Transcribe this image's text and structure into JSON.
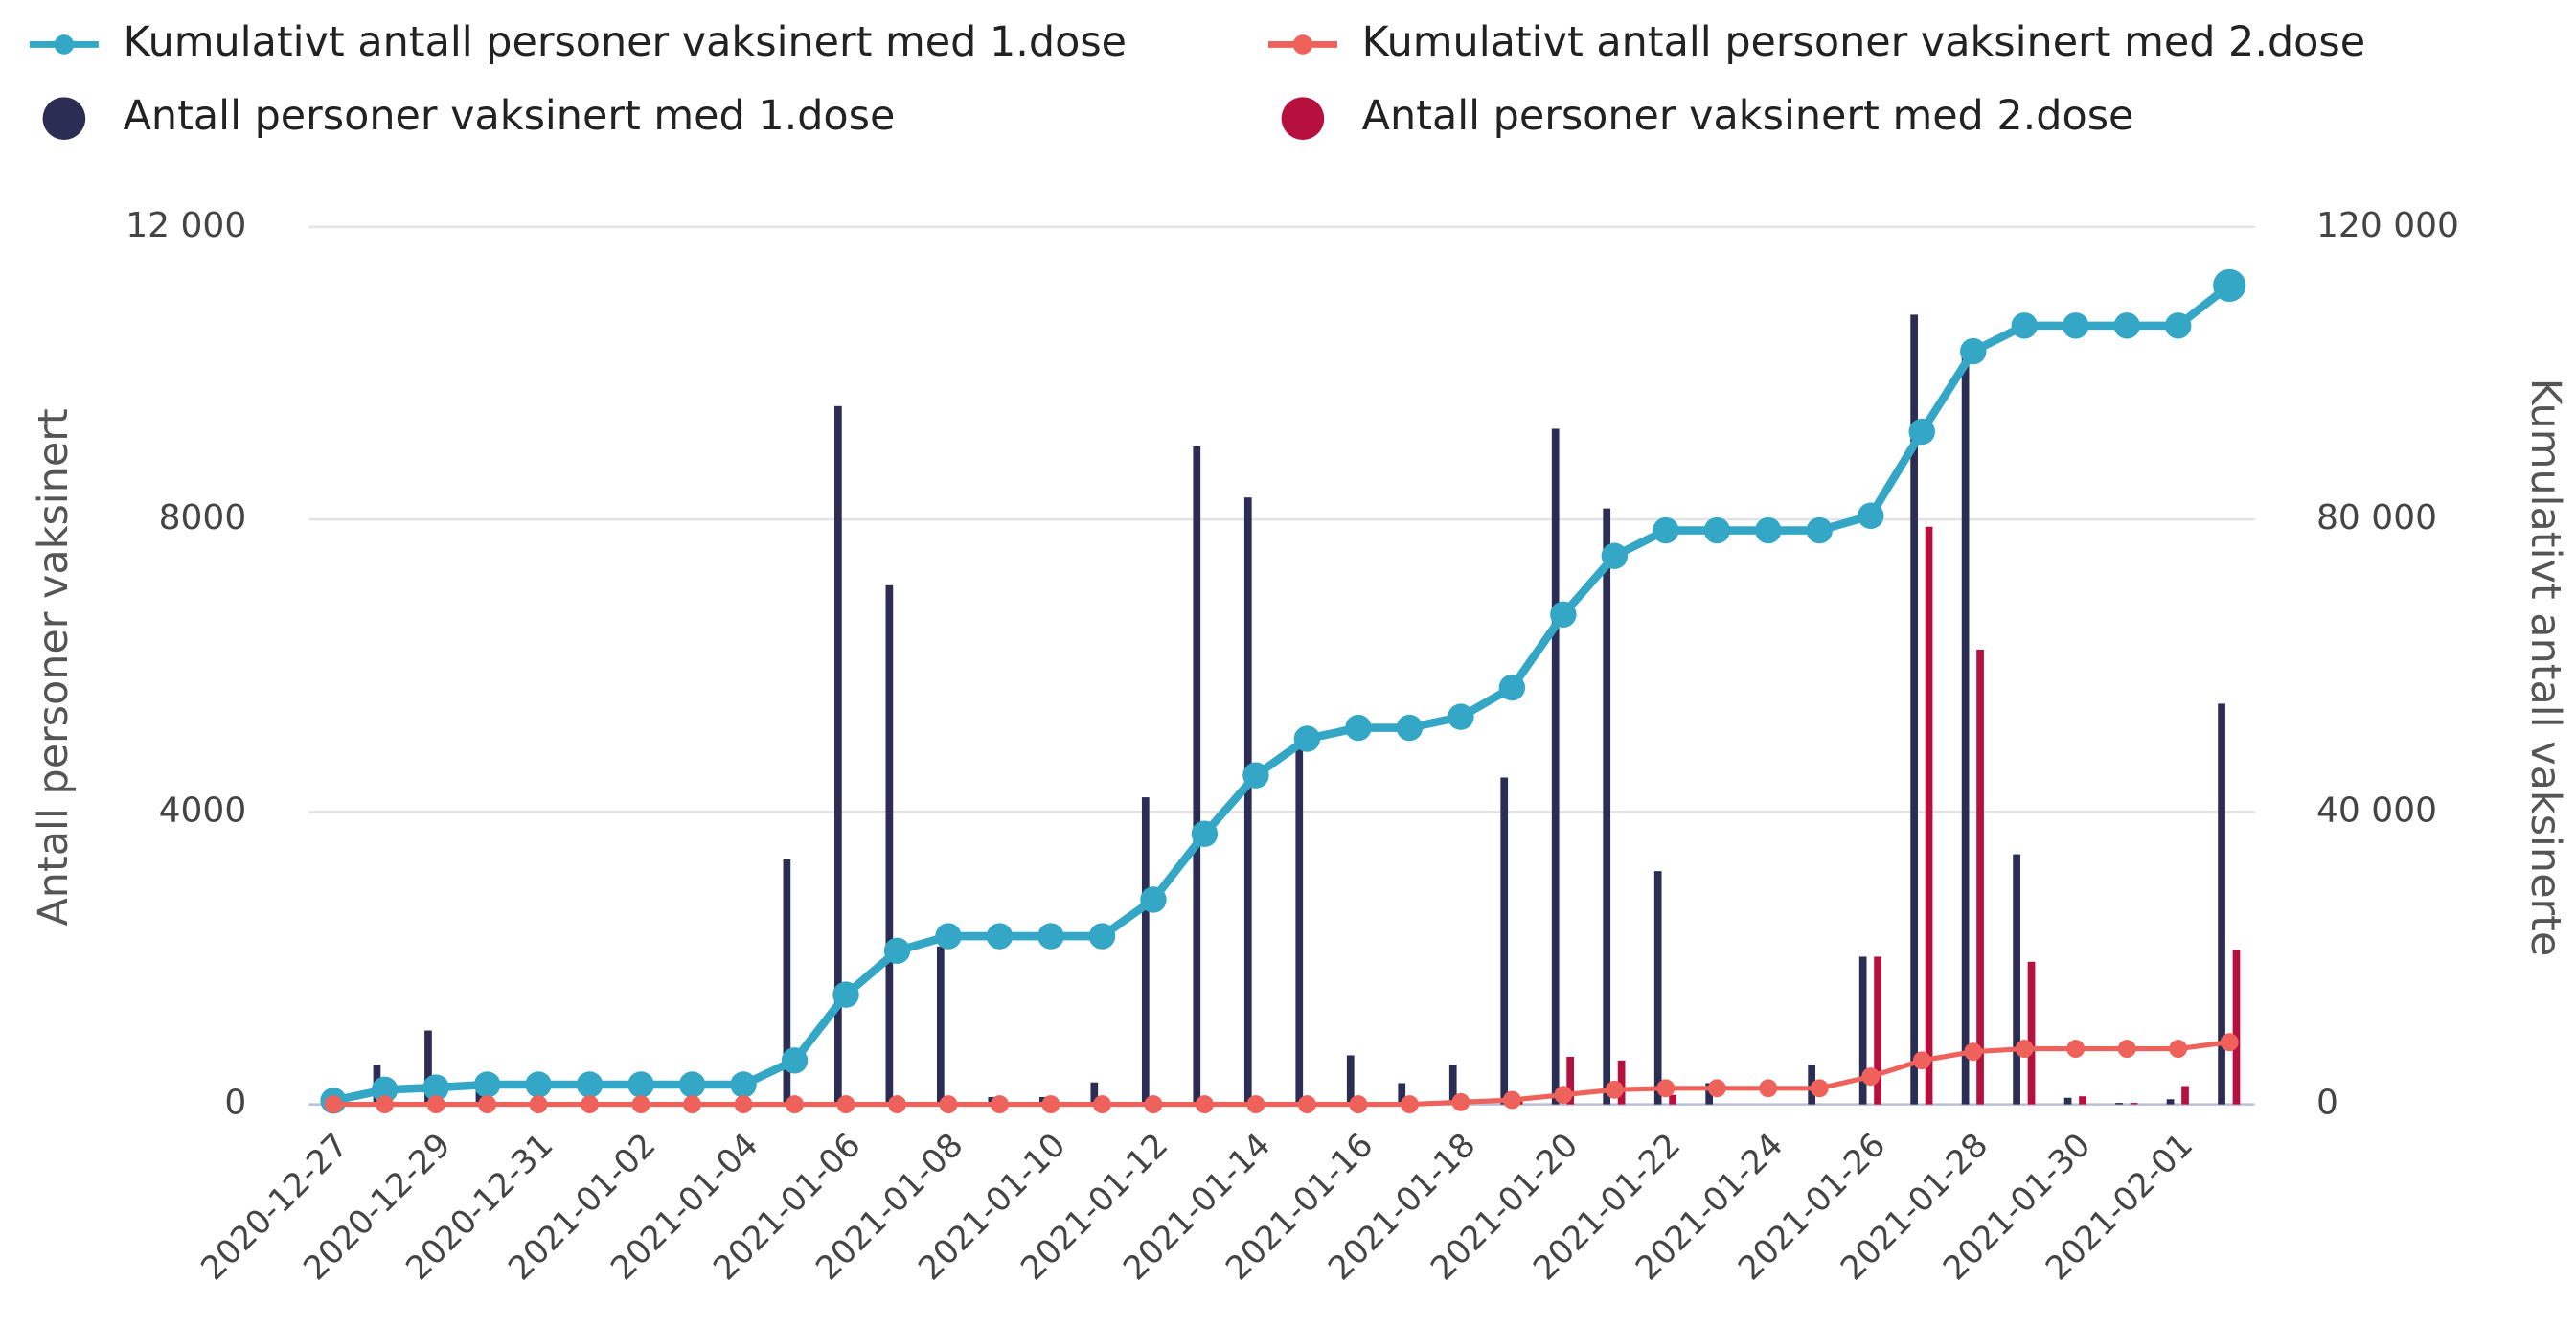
{
  "chart_data": {
    "type": "bar",
    "categories": [
      "2020-12-27",
      null,
      "2020-12-29",
      null,
      "2020-12-31",
      null,
      "2021-01-02",
      null,
      "2021-01-04",
      null,
      "2021-01-06",
      null,
      "2021-01-08",
      null,
      "2021-01-10",
      null,
      "2021-01-12",
      null,
      "2021-01-14",
      null,
      "2021-01-16",
      null,
      "2021-01-18",
      null,
      "2021-01-20",
      null,
      "2021-01-22",
      null,
      "2021-01-24",
      null,
      "2021-01-26",
      null,
      "2021-01-28",
      null,
      "2021-01-30",
      null,
      "2021-02-01",
      null
    ],
    "series": [
      {
        "name": "Kumulativt antall personer vaksinert med 1.dose",
        "type": "line",
        "axis": "y2",
        "color": "#35a7c6",
        "values": [
          500,
          2000,
          2300,
          2700,
          2700,
          2700,
          2700,
          2700,
          2700,
          6000,
          15000,
          21000,
          23000,
          23000,
          23000,
          23000,
          28000,
          37000,
          45000,
          50000,
          51500,
          51500,
          53000,
          57000,
          67000,
          75000,
          78500,
          78500,
          78500,
          78500,
          80500,
          92000,
          103000,
          106500,
          106500,
          106500,
          106500,
          112000
        ]
      },
      {
        "name": "Kumulativt antall personer vaksinert med 2.dose",
        "type": "line",
        "axis": "y2",
        "color": "#ef625b",
        "values": [
          0,
          0,
          0,
          0,
          0,
          0,
          0,
          0,
          0,
          0,
          0,
          0,
          0,
          0,
          0,
          0,
          0,
          0,
          0,
          0,
          0,
          0,
          300,
          600,
          1300,
          2000,
          2200,
          2200,
          2200,
          2200,
          3800,
          6000,
          7200,
          7600,
          7600,
          7600,
          7600,
          8500
        ]
      },
      {
        "name": "Antall personer vaksinert med 1.dose",
        "type": "bar",
        "color": "#2c2d55",
        "values": [
          0,
          540,
          1010,
          340,
          0,
          0,
          0,
          0,
          0,
          3350,
          9550,
          7100,
          2160,
          100,
          100,
          300,
          4200,
          9000,
          8300,
          5030,
          670,
          290,
          540,
          4470,
          9240,
          8150,
          3190,
          290,
          0,
          540,
          2020,
          10800,
          10380,
          3420,
          90,
          20,
          70,
          5480
        ]
      },
      {
        "name": "Antall personer vaksinert med 2.dose",
        "type": "bar",
        "color": "#b5103e",
        "values": [
          0,
          0,
          0,
          0,
          0,
          0,
          0,
          0,
          0,
          0,
          0,
          0,
          0,
          0,
          0,
          0,
          0,
          0,
          0,
          0,
          0,
          0,
          0,
          90,
          650,
          600,
          130,
          0,
          0,
          0,
          2020,
          7900,
          6220,
          1950,
          110,
          20,
          250,
          2110
        ]
      }
    ],
    "ylabel": "Antall personer vaksinert",
    "y2label": "Kumulativt antall vaksinerte",
    "ylim": [
      0,
      12000
    ],
    "yticks": [
      0,
      4000,
      8000,
      {
        "value": 12000,
        "label": "12 000"
      }
    ],
    "y2lim": [
      0,
      120000
    ],
    "y2ticks": [
      0,
      {
        "value": 40000,
        "label": "40 000"
      },
      {
        "value": 80000,
        "label": "80 000"
      },
      {
        "value": 120000,
        "label": "120 000"
      }
    ],
    "grid": true
  }
}
